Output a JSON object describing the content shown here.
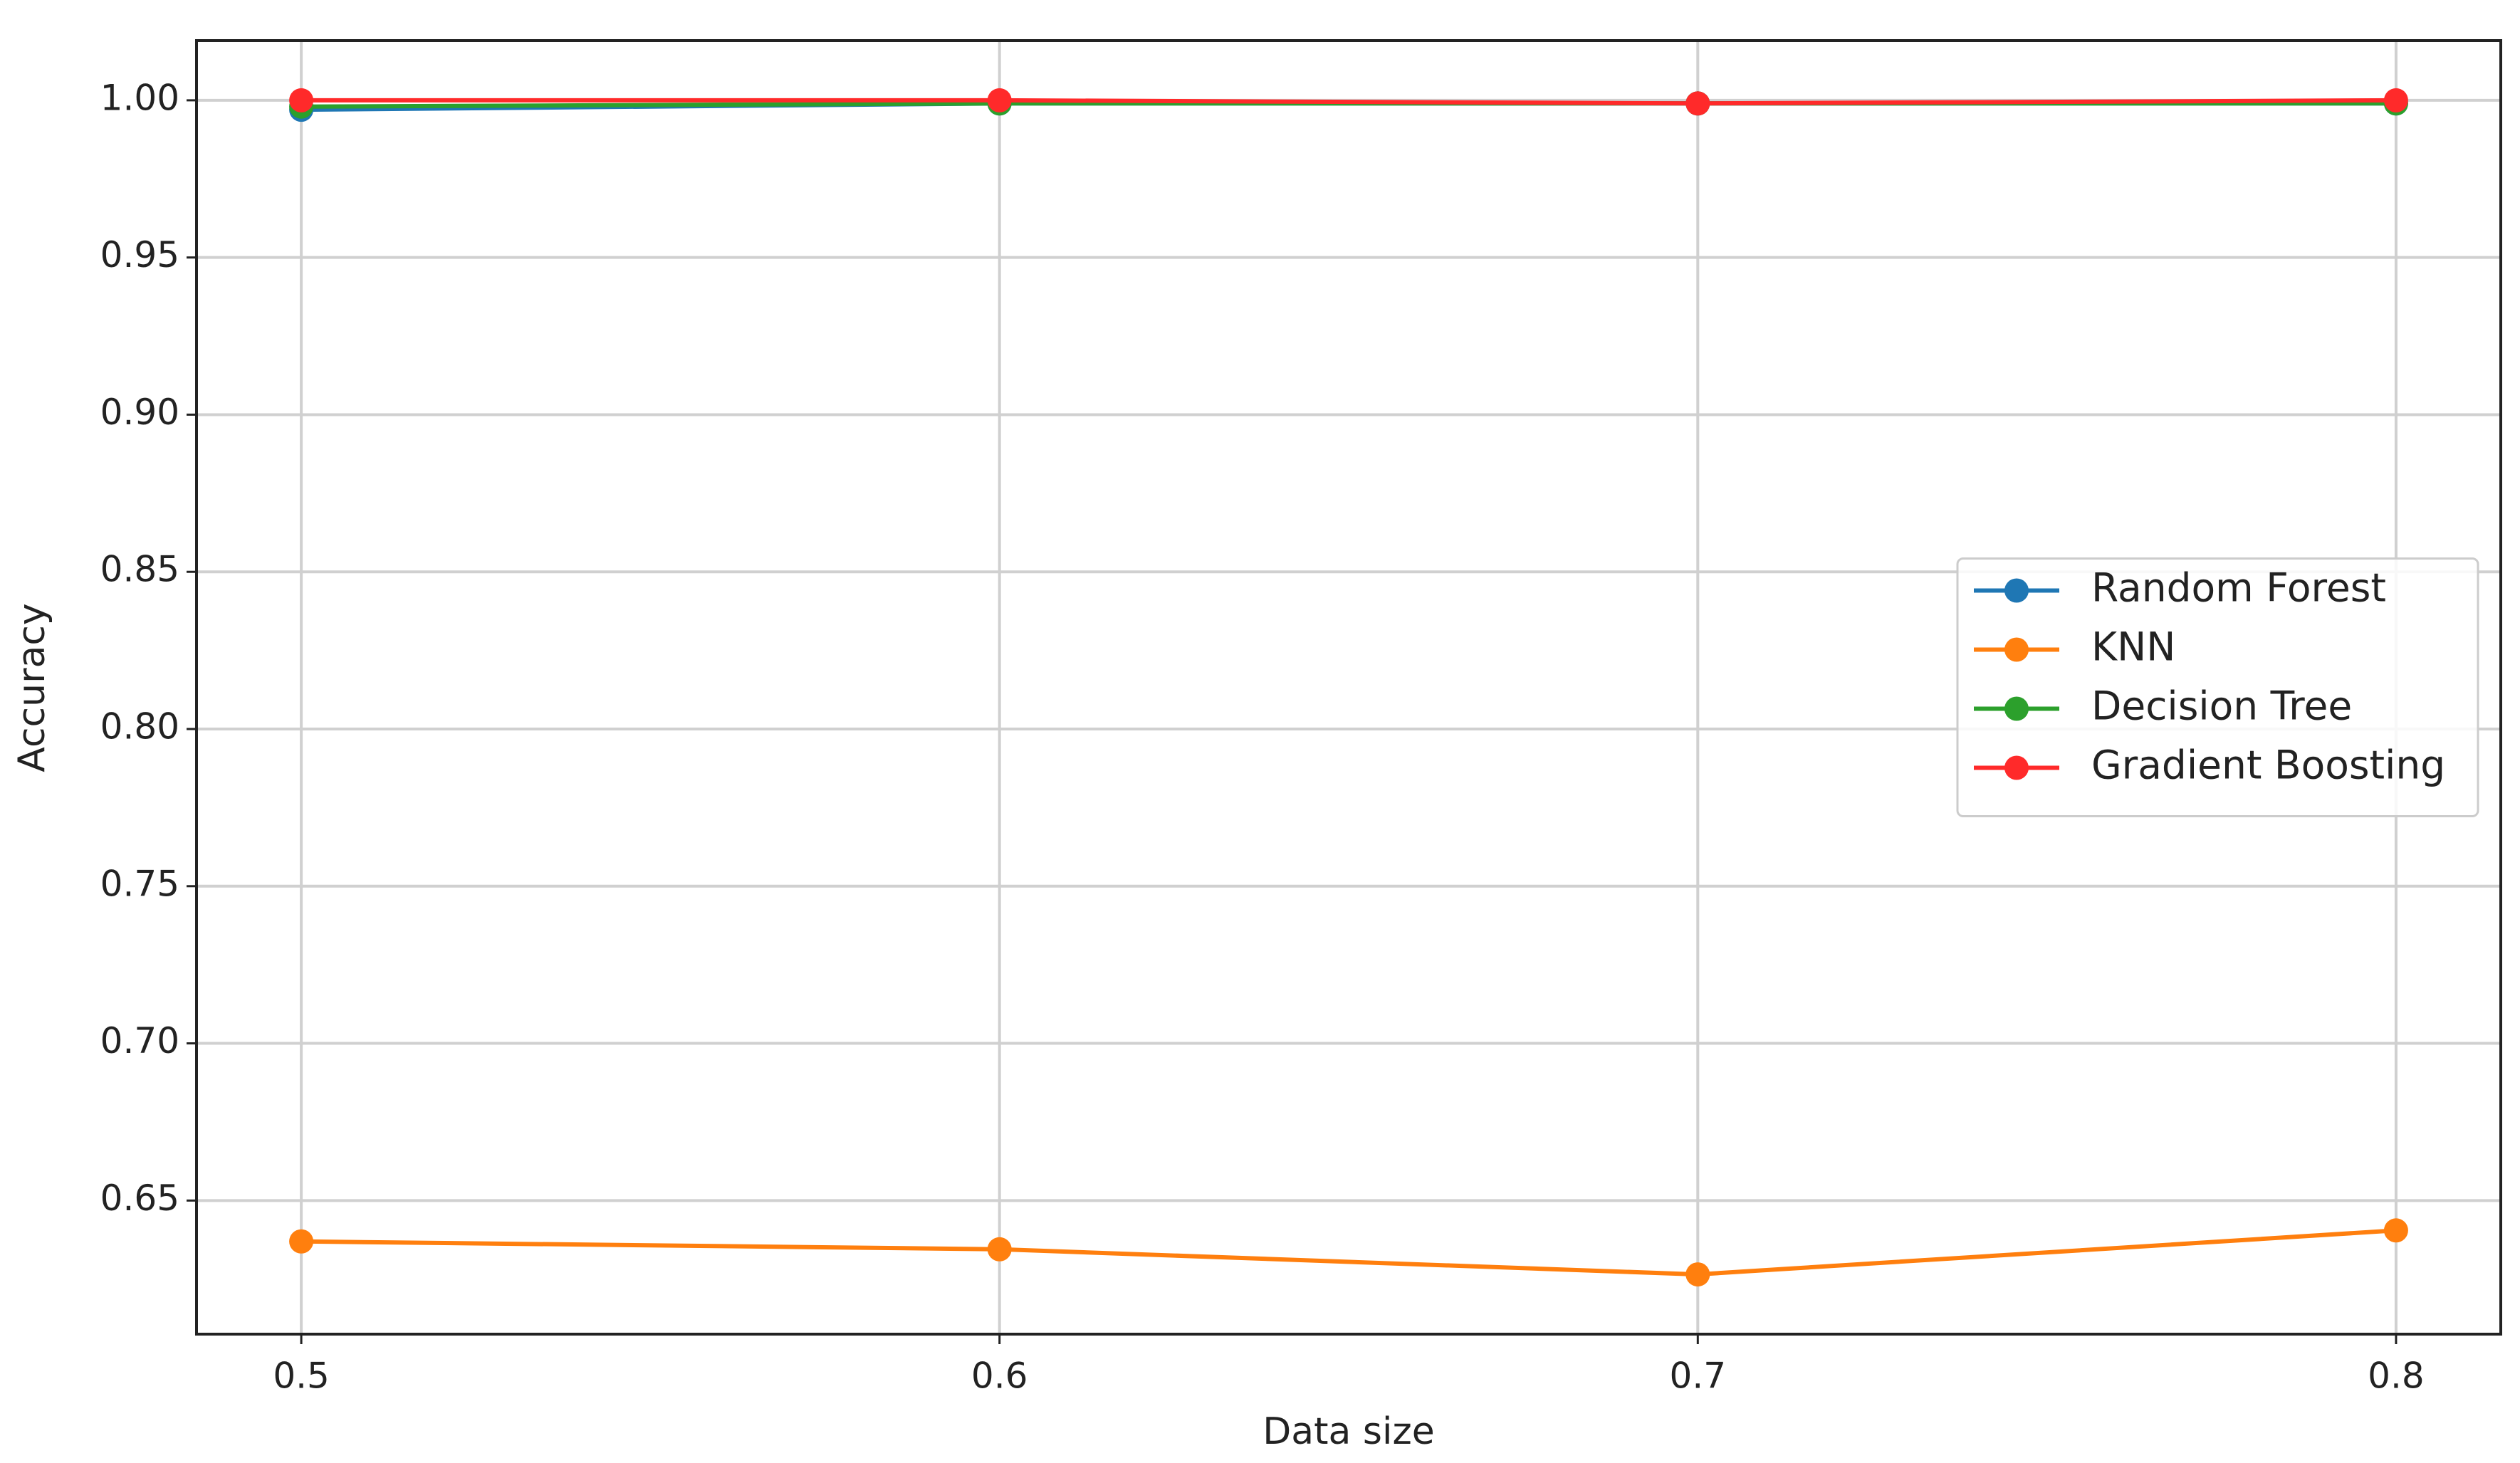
{
  "chart_data": {
    "type": "line",
    "x": [
      0.5,
      0.6,
      0.7,
      0.8
    ],
    "xlabel": "Data size",
    "ylabel": "Accuracy",
    "xlim": [
      0.485,
      0.815
    ],
    "ylim": [
      0.6075,
      1.019
    ],
    "xticks": [
      0.5,
      0.6,
      0.7,
      0.8
    ],
    "yticks": [
      {
        "value": 0.65,
        "label": "0.65"
      },
      {
        "value": 0.7,
        "label": "0.70"
      },
      {
        "value": 0.75,
        "label": "0.75"
      },
      {
        "value": 0.8,
        "label": "0.80"
      },
      {
        "value": 0.85,
        "label": "0.85"
      },
      {
        "value": 0.9,
        "label": "0.90"
      },
      {
        "value": 0.95,
        "label": "0.95"
      },
      {
        "value": 1.0,
        "label": "1.00"
      }
    ],
    "grid": true,
    "legend": "center right",
    "series": [
      {
        "name": "Random Forest",
        "color": "#1f77b4",
        "values": [
          0.997,
          0.999,
          0.999,
          0.999
        ]
      },
      {
        "name": "KNN",
        "color": "#ff7f0e",
        "values": [
          0.637,
          0.6345,
          0.6265,
          0.6405
        ]
      },
      {
        "name": "Decision Tree",
        "color": "#2ca02c",
        "values": [
          0.998,
          0.999,
          0.999,
          0.999
        ]
      },
      {
        "name": "Gradient Boosting",
        "color": "#ff2a2a",
        "values": [
          1.0,
          1.0,
          0.999,
          1.0
        ]
      }
    ]
  }
}
